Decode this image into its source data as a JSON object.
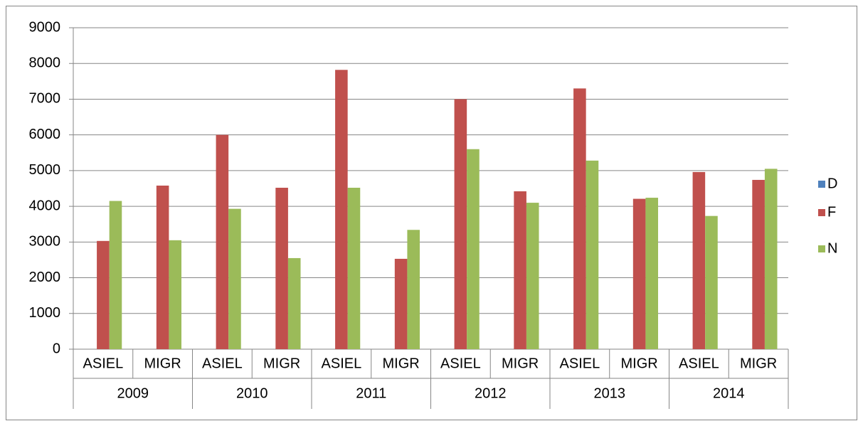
{
  "chart_data": {
    "type": "bar",
    "categories": [
      "ASIEL",
      "MIGR",
      "ASIEL",
      "MIGR",
      "ASIEL",
      "MIGR",
      "ASIEL",
      "MIGR",
      "ASIEL",
      "MIGR",
      "ASIEL",
      "MIGR"
    ],
    "category_groups": [
      "2009",
      "2010",
      "2011",
      "2012",
      "2013",
      "2014"
    ],
    "series": [
      {
        "name": "D",
        "color": "#4f81bd",
        "values": [
          null,
          null,
          null,
          null,
          null,
          null,
          null,
          null,
          null,
          null,
          null,
          null
        ]
      },
      {
        "name": "F",
        "color": "#c0504d",
        "values": [
          3030,
          4580,
          6000,
          4520,
          7820,
          2530,
          7000,
          4420,
          7300,
          4210,
          4960,
          4740
        ]
      },
      {
        "name": "N",
        "color": "#9bbb59",
        "values": [
          4150,
          3050,
          3930,
          2550,
          4520,
          3340,
          5600,
          4100,
          5280,
          4240,
          3730,
          5050
        ]
      }
    ],
    "ylim": [
      0,
      9000
    ],
    "yticks": [
      0,
      1000,
      2000,
      3000,
      4000,
      5000,
      6000,
      7000,
      8000,
      9000
    ],
    "grid": true,
    "legend": "right"
  }
}
